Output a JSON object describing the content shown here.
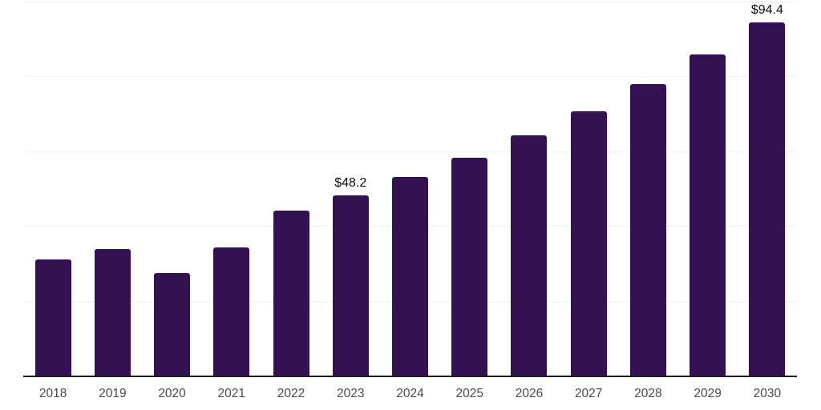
{
  "chart_data": {
    "type": "bar",
    "title": "",
    "categories": [
      "2018",
      "2019",
      "2020",
      "2021",
      "2022",
      "2023",
      "2024",
      "2025",
      "2026",
      "2027",
      "2028",
      "2029",
      "2030"
    ],
    "values": [
      31.2,
      34.0,
      27.6,
      34.4,
      44.2,
      48.2,
      53.1,
      58.4,
      64.3,
      70.8,
      77.9,
      85.8,
      94.4
    ],
    "data_labels": {
      "2023": "$48.2",
      "2030": "$94.4"
    },
    "xlabel": "",
    "ylabel": "",
    "ylim": [
      0,
      100
    ],
    "gridline_values": [
      20,
      40,
      60,
      80,
      100
    ],
    "grid": "horizontal-only",
    "legend": "none",
    "y_tick_labels": "none",
    "bar_color": "#341150",
    "gridline_color": "#f2f2f2",
    "axis_line_color": "#1f1f1f",
    "data_label_color": "#0d0d0d",
    "tick_label_color": "#4a4a4a",
    "background_color": "#ffffff"
  }
}
